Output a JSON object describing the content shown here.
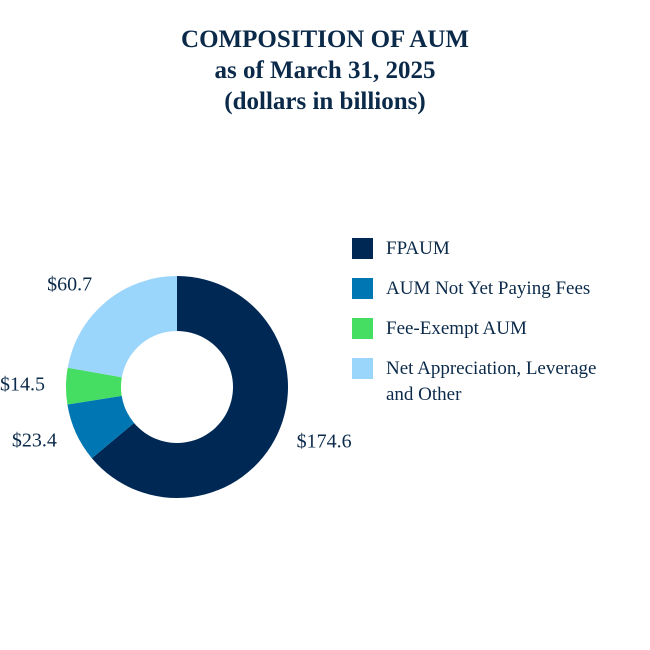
{
  "chart_data": {
    "type": "donut",
    "title": "COMPOSITION OF AUM",
    "subtitle": [
      "as of March 31, 2025",
      "(dollars in billions)"
    ],
    "categories": [
      "FPAUM",
      "AUM Not Yet Paying Fees",
      "Fee-Exempt AUM",
      "Net Appreciation, Leverage and Other"
    ],
    "values": [
      174.6,
      23.4,
      14.5,
      60.7
    ],
    "value_labels": [
      "$174.6",
      "$23.4",
      "$14.5",
      "$60.7"
    ],
    "colors": [
      "#002855",
      "#0077b3",
      "#45dd62",
      "#9ad5fc"
    ]
  }
}
